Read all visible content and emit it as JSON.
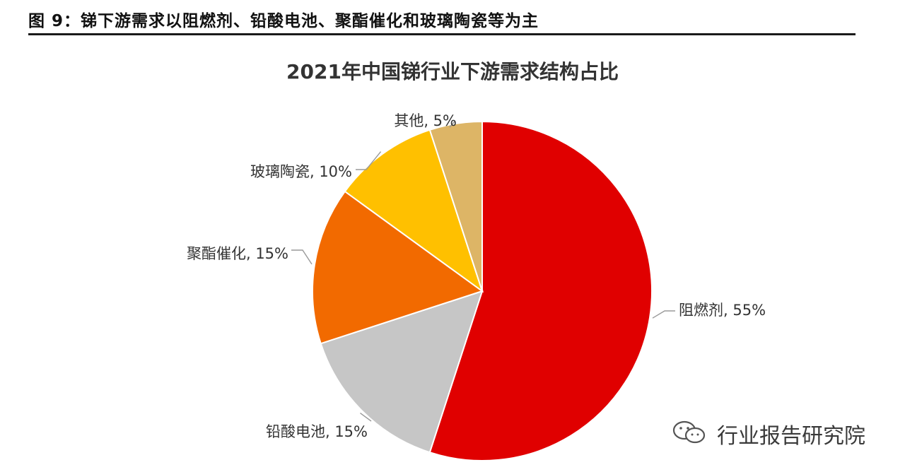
{
  "figure_caption": "图 9：锑下游需求以阻燃剂、铅酸电池、聚酯催化和玻璃陶瓷等为主",
  "watermark": {
    "text": "行业报告研究院",
    "icon": "wechat-icon"
  },
  "chart_data": {
    "type": "pie",
    "title": "2021年中国锑行业下游需求结构占比",
    "start": "12 o'clock",
    "direction": "clockwise",
    "slices": [
      {
        "name": "阻燃剂",
        "value": 55,
        "label": "阻燃剂, 55%",
        "color": "#e00000"
      },
      {
        "name": "铅酸电池",
        "value": 15,
        "label": "铅酸电池, 15%",
        "color": "#c6c6c6"
      },
      {
        "name": "聚酯催化",
        "value": 15,
        "label": "聚酯催化, 15%",
        "color": "#f26a00"
      },
      {
        "name": "玻璃陶瓷",
        "value": 10,
        "label": "玻璃陶瓷, 10%",
        "color": "#ffc000"
      },
      {
        "name": "其他",
        "value": 5,
        "label": "其他, 5%",
        "color": "#ddb566"
      }
    ]
  }
}
